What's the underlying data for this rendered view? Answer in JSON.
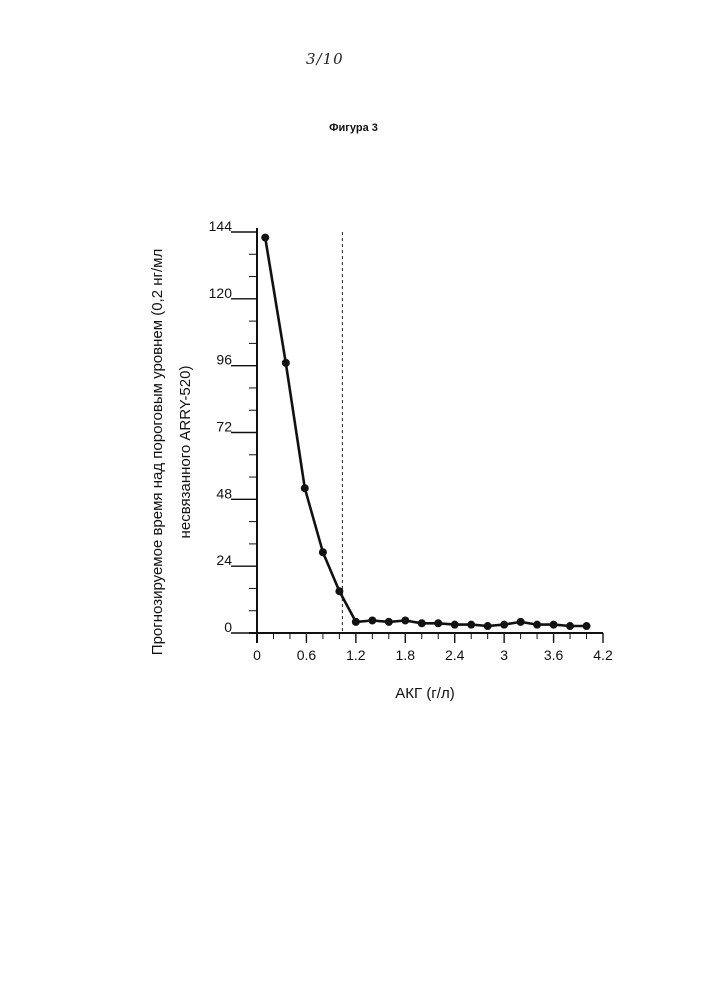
{
  "page_number": "3/10",
  "figure_title": "Фигура 3",
  "chart_data": {
    "type": "line",
    "title": "Фигура 3",
    "xlabel": "АКГ (г/л)",
    "ylabel_lines": [
      "Прогнозируемое время над  пороговым уровнем (0,2 нг/мл",
      "несвязанного ARRY-520)"
    ],
    "xlim": [
      0,
      4.2
    ],
    "ylim": [
      0,
      144
    ],
    "x_ticks": [
      0,
      0.6,
      1.2,
      1.8,
      2.4,
      3,
      3.6,
      4.2
    ],
    "x_tick_labels": [
      "0",
      "0.6",
      "1.2",
      "1.8",
      "2.4",
      "3",
      "3.6",
      "4.2"
    ],
    "y_ticks": [
      0,
      24,
      48,
      72,
      96,
      120,
      144
    ],
    "y_tick_labels": [
      "0",
      "24",
      "48",
      "72",
      "96",
      "120",
      "144"
    ],
    "x_minor_ticks": [
      0.2,
      0.4,
      0.8,
      1.0,
      1.4,
      1.6,
      2.0,
      2.2,
      2.6,
      2.8,
      3.2,
      3.4,
      3.8,
      4.0
    ],
    "y_minor_ticks": [
      8,
      16,
      32,
      40,
      56,
      64,
      80,
      88,
      104,
      112,
      128,
      136
    ],
    "vertical_reference_line_x": 1.0,
    "grid": false,
    "series": [
      {
        "x": [
          0.1,
          0.35,
          0.58,
          0.8,
          1.0,
          1.2,
          1.4,
          1.6,
          1.8,
          2.0,
          2.2,
          2.4,
          2.6,
          2.8,
          3.0,
          3.2,
          3.4,
          3.6,
          3.8,
          4.0
        ],
        "values": [
          142,
          97,
          52,
          29,
          15,
          4,
          4.5,
          4,
          4.5,
          3.5,
          3.5,
          3,
          3,
          2.5,
          3,
          4,
          3,
          3,
          2.5,
          2.5
        ]
      }
    ]
  }
}
